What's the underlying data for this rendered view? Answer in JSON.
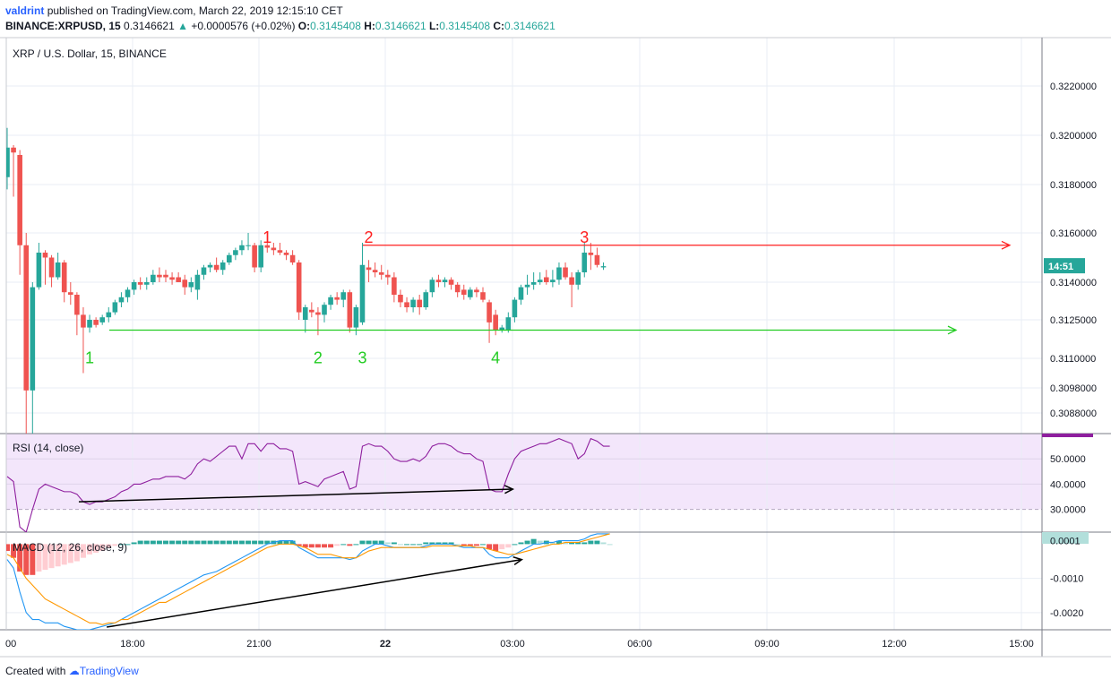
{
  "header": {
    "author": "valdrint",
    "published_text": "published on TradingView.com, March 22, 2019 12:15:10 CET",
    "symbol": "BINANCE:XRPUSD, 15",
    "last_price": "0.3146621",
    "change": "+0.0000576 (+0.02%)",
    "open_label": "O:",
    "open": "0.3145408",
    "high_label": "H:",
    "high": "0.3146621",
    "low_label": "L:",
    "low": "0.3145408",
    "close_label": "C:",
    "close": "0.3146621"
  },
  "footer": {
    "created_with": "Created with",
    "brand": "TradingView"
  },
  "chart_data": [
    {
      "type": "candlestick",
      "title": "XRP / U.S. Dollar, 15, BINANCE",
      "price_tick_labels": [
        "0.3220000",
        "0.3200000",
        "0.3180000",
        "0.3160000",
        "0.3140000",
        "0.3125000",
        "0.3110000",
        "0.3098000",
        "0.3088000"
      ],
      "current_price_tag": "14:51",
      "time_tick_labels": [
        "00",
        "18:00",
        "21:00",
        "22",
        "03:00",
        "06:00",
        "09:00",
        "12:00",
        "15:00"
      ],
      "candles": [
        {
          "o": 0.3183,
          "h": 0.3203,
          "l": 0.3178,
          "c": 0.3195
        },
        {
          "o": 0.3195,
          "h": 0.3196,
          "l": 0.3175,
          "c": 0.3193
        },
        {
          "o": 0.3192,
          "h": 0.3194,
          "l": 0.3143,
          "c": 0.3155
        },
        {
          "o": 0.3155,
          "h": 0.316,
          "l": 0.3065,
          "c": 0.3097
        },
        {
          "o": 0.3097,
          "h": 0.314,
          "l": 0.3078,
          "c": 0.3138
        },
        {
          "o": 0.3138,
          "h": 0.3156,
          "l": 0.3137,
          "c": 0.3152
        },
        {
          "o": 0.3152,
          "h": 0.3153,
          "l": 0.3139,
          "c": 0.315
        },
        {
          "o": 0.315,
          "h": 0.3151,
          "l": 0.3138,
          "c": 0.3142
        },
        {
          "o": 0.3142,
          "h": 0.3152,
          "l": 0.3141,
          "c": 0.3148
        },
        {
          "o": 0.3148,
          "h": 0.3149,
          "l": 0.3132,
          "c": 0.3136
        },
        {
          "o": 0.3136,
          "h": 0.314,
          "l": 0.3131,
          "c": 0.3135
        },
        {
          "o": 0.3135,
          "h": 0.3136,
          "l": 0.3119,
          "c": 0.3127
        },
        {
          "o": 0.3127,
          "h": 0.313,
          "l": 0.3104,
          "c": 0.3122
        },
        {
          "o": 0.3122,
          "h": 0.3127,
          "l": 0.312,
          "c": 0.3125
        },
        {
          "o": 0.3125,
          "h": 0.3126,
          "l": 0.3122,
          "c": 0.3123
        },
        {
          "o": 0.3124,
          "h": 0.3127,
          "l": 0.3123,
          "c": 0.3126
        },
        {
          "o": 0.3126,
          "h": 0.313,
          "l": 0.3124,
          "c": 0.3128
        },
        {
          "o": 0.3128,
          "h": 0.3133,
          "l": 0.3127,
          "c": 0.3132
        },
        {
          "o": 0.3132,
          "h": 0.3136,
          "l": 0.313,
          "c": 0.3134
        },
        {
          "o": 0.3134,
          "h": 0.3138,
          "l": 0.3132,
          "c": 0.3137
        },
        {
          "o": 0.3137,
          "h": 0.3141,
          "l": 0.3135,
          "c": 0.314
        },
        {
          "o": 0.314,
          "h": 0.3142,
          "l": 0.3137,
          "c": 0.3139
        },
        {
          "o": 0.3139,
          "h": 0.3142,
          "l": 0.3137,
          "c": 0.314
        },
        {
          "o": 0.314,
          "h": 0.3145,
          "l": 0.3139,
          "c": 0.3143
        },
        {
          "o": 0.3143,
          "h": 0.3146,
          "l": 0.314,
          "c": 0.3142
        },
        {
          "o": 0.3143,
          "h": 0.3145,
          "l": 0.314,
          "c": 0.3142
        },
        {
          "o": 0.3142,
          "h": 0.3144,
          "l": 0.3139,
          "c": 0.3141
        },
        {
          "o": 0.3142,
          "h": 0.3144,
          "l": 0.314,
          "c": 0.314
        },
        {
          "o": 0.3141,
          "h": 0.3143,
          "l": 0.3135,
          "c": 0.3138
        },
        {
          "o": 0.3138,
          "h": 0.3142,
          "l": 0.3136,
          "c": 0.314
        },
        {
          "o": 0.3137,
          "h": 0.3145,
          "l": 0.3133,
          "c": 0.3143
        },
        {
          "o": 0.3143,
          "h": 0.3147,
          "l": 0.3141,
          "c": 0.3146
        },
        {
          "o": 0.3146,
          "h": 0.3148,
          "l": 0.3144,
          "c": 0.3147
        },
        {
          "o": 0.3147,
          "h": 0.315,
          "l": 0.3144,
          "c": 0.3145
        },
        {
          "o": 0.3145,
          "h": 0.3149,
          "l": 0.3143,
          "c": 0.3148
        },
        {
          "o": 0.3148,
          "h": 0.3152,
          "l": 0.3147,
          "c": 0.3151
        },
        {
          "o": 0.3151,
          "h": 0.3154,
          "l": 0.3149,
          "c": 0.3153
        },
        {
          "o": 0.3153,
          "h": 0.3157,
          "l": 0.3151,
          "c": 0.3155
        },
        {
          "o": 0.3155,
          "h": 0.316,
          "l": 0.3153,
          "c": 0.3155
        },
        {
          "o": 0.3155,
          "h": 0.3156,
          "l": 0.3144,
          "c": 0.3146
        },
        {
          "o": 0.3146,
          "h": 0.3157,
          "l": 0.3144,
          "c": 0.3155
        },
        {
          "o": 0.3155,
          "h": 0.316,
          "l": 0.3152,
          "c": 0.3154
        },
        {
          "o": 0.3154,
          "h": 0.3156,
          "l": 0.3151,
          "c": 0.3153
        },
        {
          "o": 0.3153,
          "h": 0.3156,
          "l": 0.3151,
          "c": 0.3152
        },
        {
          "o": 0.3152,
          "h": 0.3153,
          "l": 0.3149,
          "c": 0.3151
        },
        {
          "o": 0.3151,
          "h": 0.3153,
          "l": 0.3147,
          "c": 0.3148
        },
        {
          "o": 0.3148,
          "h": 0.3149,
          "l": 0.3125,
          "c": 0.3128
        },
        {
          "o": 0.3125,
          "h": 0.3131,
          "l": 0.312,
          "c": 0.313
        },
        {
          "o": 0.3129,
          "h": 0.3132,
          "l": 0.3126,
          "c": 0.3128
        },
        {
          "o": 0.3128,
          "h": 0.313,
          "l": 0.3119,
          "c": 0.3127
        },
        {
          "o": 0.3127,
          "h": 0.3132,
          "l": 0.3124,
          "c": 0.3131
        },
        {
          "o": 0.3131,
          "h": 0.3135,
          "l": 0.3129,
          "c": 0.3134
        },
        {
          "o": 0.3134,
          "h": 0.3136,
          "l": 0.3131,
          "c": 0.3133
        },
        {
          "o": 0.3133,
          "h": 0.3137,
          "l": 0.313,
          "c": 0.3136
        },
        {
          "o": 0.3136,
          "h": 0.3137,
          "l": 0.312,
          "c": 0.3122
        },
        {
          "o": 0.3122,
          "h": 0.3131,
          "l": 0.3119,
          "c": 0.313
        },
        {
          "o": 0.3124,
          "h": 0.3156,
          "l": 0.3123,
          "c": 0.3147
        },
        {
          "o": 0.3146,
          "h": 0.3149,
          "l": 0.314,
          "c": 0.3145
        },
        {
          "o": 0.3145,
          "h": 0.3148,
          "l": 0.3142,
          "c": 0.3144
        },
        {
          "o": 0.3144,
          "h": 0.3147,
          "l": 0.3141,
          "c": 0.3143
        },
        {
          "o": 0.3143,
          "h": 0.3145,
          "l": 0.3139,
          "c": 0.3142
        },
        {
          "o": 0.3142,
          "h": 0.3144,
          "l": 0.3132,
          "c": 0.3135
        },
        {
          "o": 0.3135,
          "h": 0.3137,
          "l": 0.313,
          "c": 0.3132
        },
        {
          "o": 0.3132,
          "h": 0.3134,
          "l": 0.3128,
          "c": 0.313
        },
        {
          "o": 0.313,
          "h": 0.3134,
          "l": 0.3128,
          "c": 0.3133
        },
        {
          "o": 0.3133,
          "h": 0.3135,
          "l": 0.3127,
          "c": 0.313
        },
        {
          "o": 0.313,
          "h": 0.3137,
          "l": 0.3129,
          "c": 0.3136
        },
        {
          "o": 0.3136,
          "h": 0.3142,
          "l": 0.3134,
          "c": 0.3141
        },
        {
          "o": 0.3141,
          "h": 0.3143,
          "l": 0.3138,
          "c": 0.314
        },
        {
          "o": 0.314,
          "h": 0.3142,
          "l": 0.3138,
          "c": 0.3141
        },
        {
          "o": 0.3141,
          "h": 0.3142,
          "l": 0.3137,
          "c": 0.3139
        },
        {
          "o": 0.3139,
          "h": 0.314,
          "l": 0.3134,
          "c": 0.3136
        },
        {
          "o": 0.3137,
          "h": 0.3139,
          "l": 0.3133,
          "c": 0.3135
        },
        {
          "o": 0.3134,
          "h": 0.3138,
          "l": 0.3133,
          "c": 0.3137
        },
        {
          "o": 0.3137,
          "h": 0.3138,
          "l": 0.3134,
          "c": 0.3136
        },
        {
          "o": 0.3136,
          "h": 0.3138,
          "l": 0.3132,
          "c": 0.3133
        },
        {
          "o": 0.3132,
          "h": 0.3133,
          "l": 0.3116,
          "c": 0.3124
        },
        {
          "o": 0.3127,
          "h": 0.3129,
          "l": 0.3119,
          "c": 0.3121
        },
        {
          "o": 0.3121,
          "h": 0.3123,
          "l": 0.312,
          "c": 0.3122
        },
        {
          "o": 0.3121,
          "h": 0.3128,
          "l": 0.312,
          "c": 0.3126
        },
        {
          "o": 0.3126,
          "h": 0.3134,
          "l": 0.3124,
          "c": 0.3133
        },
        {
          "o": 0.3133,
          "h": 0.3139,
          "l": 0.3131,
          "c": 0.3138
        },
        {
          "o": 0.3138,
          "h": 0.3143,
          "l": 0.3135,
          "c": 0.3139
        },
        {
          "o": 0.3139,
          "h": 0.3144,
          "l": 0.3137,
          "c": 0.314
        },
        {
          "o": 0.314,
          "h": 0.3144,
          "l": 0.3139,
          "c": 0.3141
        },
        {
          "o": 0.3142,
          "h": 0.3145,
          "l": 0.3139,
          "c": 0.314
        },
        {
          "o": 0.314,
          "h": 0.3145,
          "l": 0.3138,
          "c": 0.3141
        },
        {
          "o": 0.3141,
          "h": 0.3148,
          "l": 0.3139,
          "c": 0.3146
        },
        {
          "o": 0.3146,
          "h": 0.3148,
          "l": 0.3141,
          "c": 0.3142
        },
        {
          "o": 0.3142,
          "h": 0.3144,
          "l": 0.313,
          "c": 0.3139
        },
        {
          "o": 0.3139,
          "h": 0.3145,
          "l": 0.3137,
          "c": 0.3144
        },
        {
          "o": 0.3144,
          "h": 0.3156,
          "l": 0.3142,
          "c": 0.3152
        },
        {
          "o": 0.3152,
          "h": 0.3156,
          "l": 0.3145,
          "c": 0.3151
        },
        {
          "o": 0.3151,
          "h": 0.3154,
          "l": 0.3146,
          "c": 0.3147
        },
        {
          "o": 0.3146,
          "h": 0.3148,
          "l": 0.3145,
          "c": 0.31465
        }
      ],
      "resistance": {
        "price": 0.3155,
        "labels": [
          "1",
          "2",
          "3"
        ],
        "label_candle_index": [
          41,
          57,
          91
        ]
      },
      "support": {
        "price": 0.3121,
        "labels": [
          "1",
          "2",
          "3",
          "4"
        ],
        "label_candle_index": [
          13,
          49,
          56,
          77
        ]
      }
    },
    {
      "type": "line",
      "title": "RSI (14, close)",
      "tick_labels": [
        "50.0000",
        "40.0000",
        "30.0000"
      ],
      "ylim": [
        21,
        60
      ],
      "band": [
        30,
        70
      ],
      "values": [
        43,
        41,
        23,
        21,
        30,
        38,
        40,
        39,
        38,
        37,
        37,
        36,
        33,
        32,
        33,
        33,
        34,
        35,
        37,
        38,
        40,
        40,
        41,
        42,
        42,
        43,
        43,
        43,
        42,
        44,
        48,
        50,
        49,
        51,
        53,
        55,
        55,
        50,
        56,
        56,
        53,
        56,
        56,
        54,
        54,
        53,
        40,
        41,
        40,
        39,
        42,
        43,
        44,
        45,
        38,
        39,
        55,
        56,
        55,
        55,
        53,
        50,
        49,
        49,
        50,
        49,
        51,
        55,
        56,
        56,
        55,
        53,
        52,
        52,
        50,
        49,
        38,
        37,
        37,
        44,
        50,
        53,
        54,
        55,
        56,
        56,
        57,
        58,
        57,
        56,
        50,
        52,
        58,
        57,
        55,
        55
      ],
      "divergence_arrow": {
        "from": [
          12,
          33
        ],
        "to": [
          79,
          38
        ]
      }
    },
    {
      "type": "line+bar",
      "title": "MACD (12, 26, close, 9)",
      "tick_labels": [
        "0.0001",
        "-0.0010",
        "-0.0020"
      ],
      "ylim": [
        -0.0025,
        0.00035
      ],
      "macd_line": [
        -0.00045,
        -0.0007,
        -0.0014,
        -0.002,
        -0.0022,
        -0.0022,
        -0.0023,
        -0.0023,
        -0.0023,
        -0.0024,
        -0.00245,
        -0.0025,
        -0.0025,
        -0.0025,
        -0.00245,
        -0.0024,
        -0.00235,
        -0.0023,
        -0.0022,
        -0.0021,
        -0.002,
        -0.0019,
        -0.0018,
        -0.0017,
        -0.0016,
        -0.0015,
        -0.0014,
        -0.0013,
        -0.0012,
        -0.0011,
        -0.001,
        -0.0009,
        -0.00085,
        -0.0008,
        -0.0007,
        -0.0006,
        -0.0005,
        -0.0004,
        -0.0003,
        -0.0002,
        -0.0001,
        0.0,
        5e-05,
        0.0001,
        0.0001,
        0.0001,
        -0.0001,
        -0.0002,
        -0.0003,
        -0.0004,
        -0.0004,
        -0.0004,
        -0.0004,
        -0.0004,
        -0.00045,
        -0.0004,
        -0.0002,
        -0.0001,
        0.0,
        0.0,
        -5e-05,
        -0.0001,
        -0.0001,
        -0.0001,
        -0.0001,
        -0.0001,
        -5e-05,
        0.0,
        0.0,
        0.0,
        0.0,
        -5e-05,
        -0.0001,
        -0.0001,
        -0.0001,
        -0.0001,
        -0.0003,
        -0.0004,
        -0.0004,
        -0.0004,
        -0.0003,
        -0.0002,
        -0.0001,
        0.0,
        0.0,
        5e-05,
        5e-05,
        0.0001,
        0.0001,
        0.0001,
        0.0001,
        0.00015,
        0.00025,
        0.0003,
        0.0003,
        0.0003
      ],
      "signal_line": [
        -0.0003,
        -0.0004,
        -0.0007,
        -0.001,
        -0.0012,
        -0.0014,
        -0.0016,
        -0.0017,
        -0.0018,
        -0.0019,
        -0.002,
        -0.0021,
        -0.0022,
        -0.0023,
        -0.0023,
        -0.00235,
        -0.0023,
        -0.0023,
        -0.0022,
        -0.0022,
        -0.0021,
        -0.002,
        -0.0019,
        -0.0018,
        -0.0017,
        -0.0017,
        -0.0016,
        -0.0015,
        -0.0014,
        -0.0013,
        -0.0012,
        -0.0011,
        -0.001,
        -0.0009,
        -0.0008,
        -0.0007,
        -0.0006,
        -0.0005,
        -0.0004,
        -0.0003,
        -0.0002,
        -0.0001,
        -5e-05,
        0.0,
        0.0,
        0.0,
        -5e-05,
        -0.0001,
        -0.0002,
        -0.0003,
        -0.0003,
        -0.0003,
        -0.00035,
        -0.0004,
        -0.0004,
        -0.0004,
        -0.0003,
        -0.0002,
        -0.00015,
        -0.0001,
        -0.0001,
        -0.0001,
        -0.0001,
        -0.0001,
        -0.0001,
        -0.0001,
        -0.0001,
        -5e-05,
        -5e-05,
        -5e-05,
        -5e-05,
        -5e-05,
        -5e-05,
        -5e-05,
        -0.0001,
        -0.0001,
        -0.00015,
        -0.0002,
        -0.00025,
        -0.0003,
        -0.0003,
        -0.00025,
        -0.0002,
        -0.00015,
        -0.0001,
        -5e-05,
        0.0,
        0.0,
        5e-05,
        5e-05,
        5e-05,
        0.0001,
        0.00015,
        0.0002,
        0.00025,
        0.0003
      ],
      "histogram": [
        -0.0002,
        -0.0004,
        -0.0008,
        -0.0009,
        -0.0009,
        -0.0008,
        -0.00075,
        -0.0007,
        -0.00065,
        -0.0006,
        -0.00055,
        -0.0005,
        -0.0004,
        -0.0003,
        -0.00025,
        -0.0002,
        -0.0001,
        -5e-05,
        0.0,
        0.0,
        5e-05,
        0.0001,
        0.0001,
        0.0001,
        0.0001,
        0.0001,
        0.0001,
        0.0001,
        0.0001,
        0.0001,
        0.0001,
        0.0001,
        0.0001,
        0.0001,
        0.0001,
        0.0001,
        0.0001,
        0.0001,
        0.0001,
        0.0001,
        0.0001,
        0.0001,
        0.0001,
        0.0001,
        0.0001,
        0.0001,
        -5e-05,
        -0.0001,
        -0.0001,
        -0.0001,
        -0.0001,
        -0.0001,
        -5e-05,
        0.0,
        -5e-05,
        0.0,
        0.0001,
        0.0001,
        0.0001,
        0.0001,
        5e-05,
        5e-05,
        0.0,
        0.0,
        0.0,
        0.0,
        5e-05,
        5e-05,
        5e-05,
        5e-05,
        5e-05,
        0.0,
        -5e-05,
        -5e-05,
        -5e-05,
        0.0,
        -0.00015,
        -0.0002,
        -0.00015,
        -0.0001,
        0.0,
        5e-05,
        0.0001,
        0.00015,
        0.0001,
        0.0001,
        5e-05,
        0.0001,
        5e-05,
        5e-05,
        5e-05,
        5e-05,
        0.0001,
        0.0001,
        5e-05,
        0.0
      ],
      "divergence_arrow": {
        "from": [
          14,
          -0.0025
        ],
        "to": [
          79,
          -0.00045
        ]
      }
    }
  ],
  "colors": {
    "bull": "#26a69a",
    "bear": "#ef5350",
    "resistance": "#ff1f1f",
    "support": "#22cc22",
    "rsi_line": "#8e1e9e",
    "rsi_band": "#f3e6fb",
    "macd_line": "#2196f3",
    "signal_line": "#ff9800",
    "hist_pos": "#26a69a",
    "hist_neg": "#ef5350"
  }
}
